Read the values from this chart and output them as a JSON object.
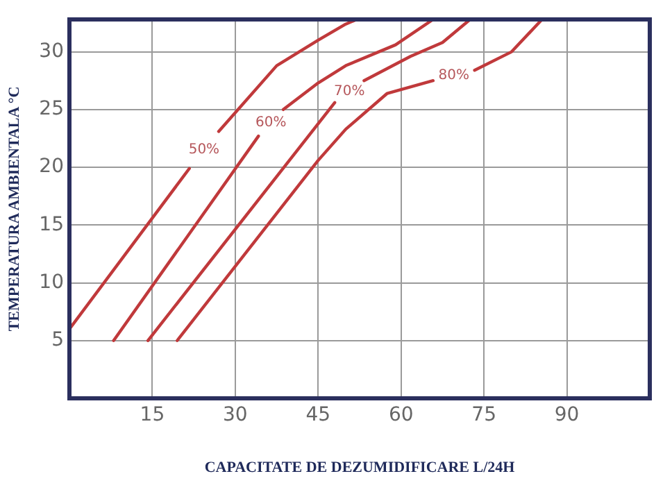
{
  "chart_data": {
    "type": "line",
    "xlabel": "CAPACITATE DE DEZUMIDIFICARE L/24H",
    "ylabel": "TEMPERATURA AMBIENTALA °C",
    "xlim": [
      0,
      105
    ],
    "ylim": [
      0,
      32.8
    ],
    "xticks": [
      15,
      30,
      45,
      60,
      75,
      90
    ],
    "yticks": [
      5,
      10,
      15,
      20,
      25,
      30
    ],
    "grid": true,
    "legend": false,
    "marker": "none",
    "line_style": "solid",
    "series": [
      {
        "name": "50%",
        "color": "#c0393b",
        "x": [
          0,
          21.7,
          24,
          27,
          37.5,
          45,
          50,
          52
        ],
        "values": [
          6,
          19.9,
          null,
          23.1,
          28.8,
          31,
          32.4,
          32.8
        ]
      },
      {
        "name": "60%",
        "color": "#c0393b",
        "x": [
          8,
          34.2,
          36,
          38.7,
          45,
          50,
          59,
          65.8
        ],
        "values": [
          5,
          22.7,
          null,
          25,
          27.3,
          28.8,
          30.6,
          32.8
        ]
      },
      {
        "name": "70%",
        "color": "#c0393b",
        "x": [
          14.2,
          48,
          51,
          53.3,
          61.7,
          67.5,
          72.5
        ],
        "values": [
          5,
          25.6,
          null,
          27.5,
          29.6,
          30.8,
          32.8
        ]
      },
      {
        "name": "80%",
        "color": "#c0393b",
        "x": [
          19.5,
          45,
          50,
          57.5,
          65.8,
          70,
          73.3,
          80,
          85.5
        ],
        "values": [
          5,
          20.6,
          23.3,
          26.4,
          27.5,
          null,
          28.4,
          30,
          32.8
        ]
      }
    ]
  }
}
